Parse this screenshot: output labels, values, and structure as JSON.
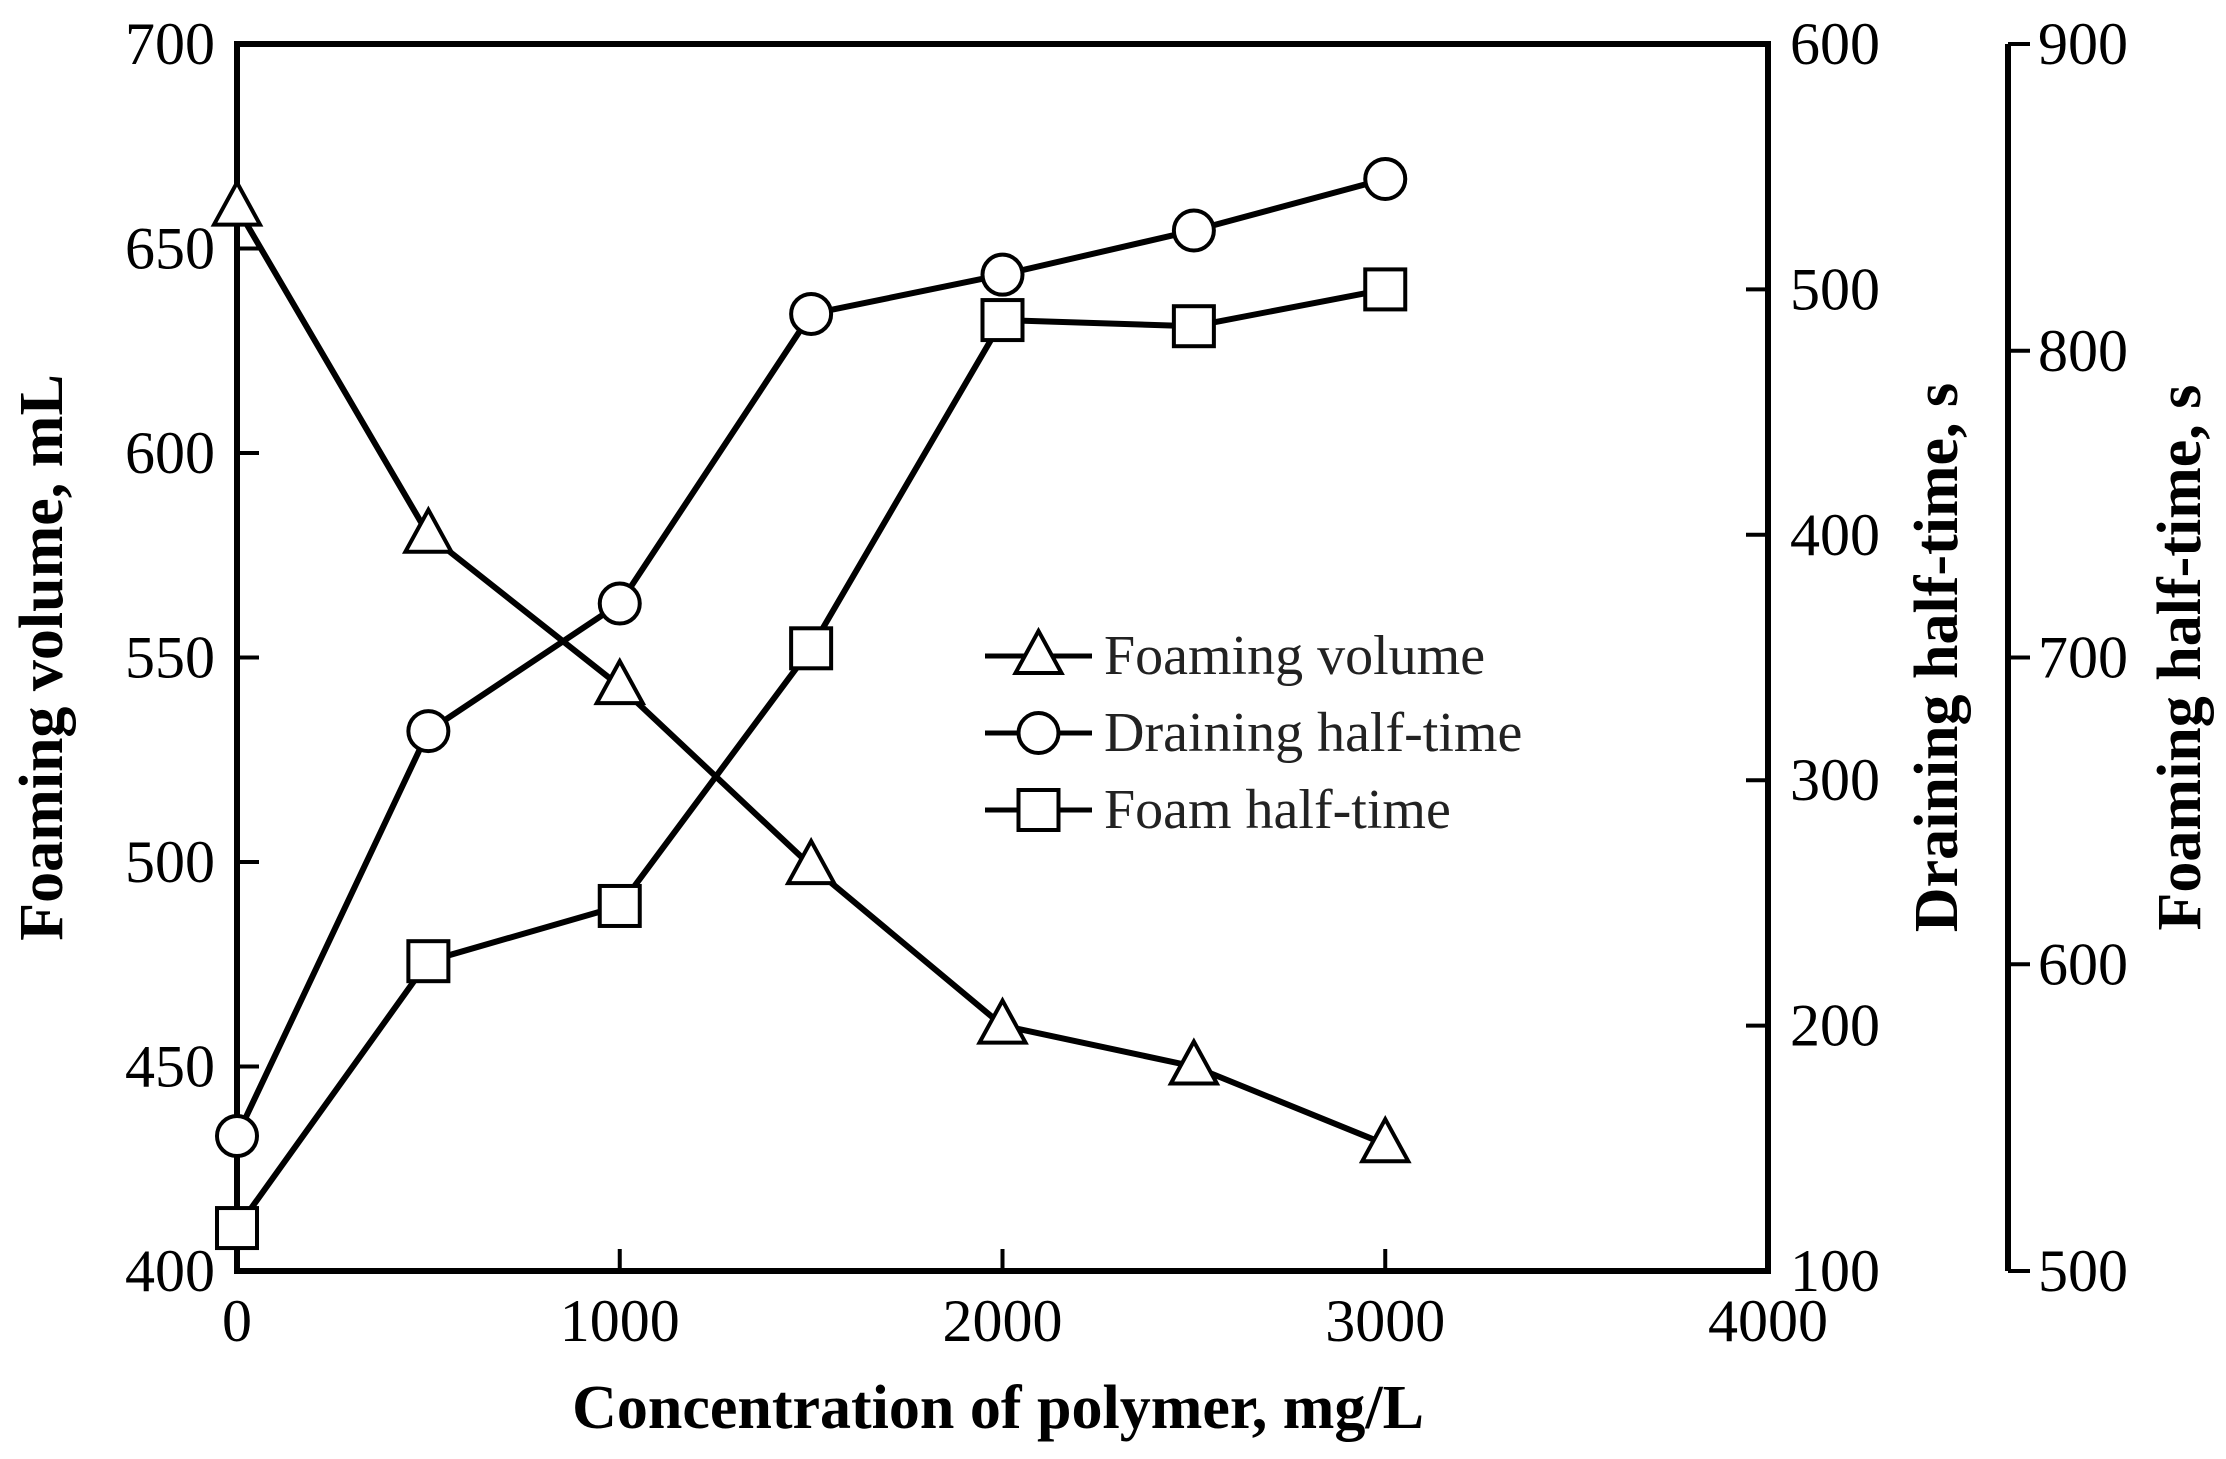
{
  "chart_data": {
    "type": "line",
    "title": "",
    "x": [
      0,
      500,
      1000,
      1500,
      2000,
      2500,
      3000
    ],
    "xlabel": "Concentration of polymer, mg/L",
    "xlim": [
      0,
      4000
    ],
    "xticks": [
      0,
      1000,
      2000,
      3000,
      4000
    ],
    "axes": [
      {
        "id": "left",
        "label": "Foaming volume, mL",
        "ylim": [
          400,
          700
        ],
        "ticks": [
          400,
          450,
          500,
          550,
          600,
          650,
          700
        ]
      },
      {
        "id": "right1",
        "label": "Draining half-time, s",
        "ylim": [
          100,
          600
        ],
        "ticks": [
          100,
          200,
          300,
          400,
          500,
          600
        ]
      },
      {
        "id": "right2",
        "label": "Foaming half-time, s",
        "ylim": [
          500,
          900
        ],
        "ticks": [
          500,
          600,
          700,
          800,
          900
        ]
      }
    ],
    "series": [
      {
        "name": "Foaming volume",
        "marker": "triangle",
        "axis": "left",
        "x": [
          0,
          500,
          1000,
          1500,
          2000,
          2500,
          3000
        ],
        "values": [
          660,
          580,
          543,
          499,
          460,
          450,
          431
        ]
      },
      {
        "name": "Draining half-time",
        "marker": "circle",
        "axis": "right1",
        "x": [
          0,
          500,
          1000,
          1500,
          2000,
          2500,
          3000
        ],
        "values": [
          155,
          320,
          372,
          490,
          506,
          524,
          545
        ]
      },
      {
        "name": "Foam half-time",
        "marker": "square",
        "axis": "right2",
        "x": [
          0,
          500,
          1000,
          1500,
          2000,
          2500,
          3000
        ],
        "values": [
          514,
          601,
          619,
          703,
          810,
          808,
          820
        ]
      }
    ],
    "legend": {
      "position": "center-right"
    }
  }
}
